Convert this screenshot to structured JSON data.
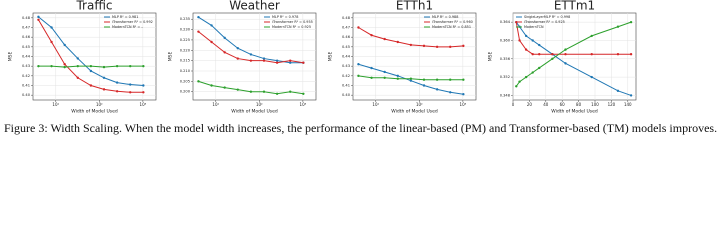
{
  "chart_data": [
    {
      "type": "line",
      "title": "Traffic",
      "x_label": "Width of Model Used",
      "y_label": "MSE",
      "xscale": "log",
      "x": [
        4,
        8,
        16,
        32,
        64,
        128,
        256,
        512,
        1024
      ],
      "xlim": [
        3,
        2000
      ],
      "xticks": [
        {
          "value": 10,
          "label": "10¹"
        },
        {
          "value": 100,
          "label": "10²"
        },
        {
          "value": 1000,
          "label": "10³"
        }
      ],
      "ylim": [
        0.395,
        0.485
      ],
      "yticks": [
        {
          "value": 0.4,
          "label": "0.40"
        },
        0.41,
        0.42,
        0.43,
        0.44,
        0.45,
        0.46,
        0.47,
        0.48
      ],
      "grid": true,
      "legend": "upper right",
      "series": [
        {
          "name": "MLP R² = 0.981",
          "color": "#1f77b4",
          "values": [
            0.481,
            0.47,
            0.452,
            0.438,
            0.425,
            0.418,
            0.413,
            0.411,
            0.41
          ]
        },
        {
          "name": "iTransformer R² = 0.992",
          "color": "#d62728",
          "values": [
            0.478,
            0.455,
            0.432,
            0.418,
            0.41,
            0.406,
            0.404,
            0.403,
            0.403
          ]
        },
        {
          "name": "ModernTCN R² = –",
          "color": "#2ca02c",
          "values": [
            0.43,
            0.43,
            0.429,
            0.43,
            0.43,
            0.429,
            0.43,
            0.43,
            0.43
          ]
        }
      ]
    },
    {
      "type": "line",
      "title": "Weather",
      "x_label": "Width of Model Used",
      "y_label": "MSE",
      "xscale": "log",
      "x": [
        4,
        8,
        16,
        32,
        64,
        128,
        256,
        512,
        1024
      ],
      "xlim": [
        3,
        2000
      ],
      "xticks": [
        {
          "value": 10,
          "label": "10¹"
        },
        {
          "value": 100,
          "label": "10²"
        },
        {
          "value": 1000,
          "label": "10³"
        }
      ],
      "ylim": [
        0.196,
        0.238
      ],
      "yticks": [
        {
          "value": 0.2,
          "label": "0.200"
        },
        0.205,
        {
          "value": 0.21,
          "label": "0.210"
        },
        0.215,
        {
          "value": 0.22,
          "label": "0.220"
        },
        0.225,
        {
          "value": 0.23,
          "label": "0.230"
        },
        0.235
      ],
      "grid": true,
      "legend": "upper right",
      "series": [
        {
          "name": "MLP R² = 0.978",
          "color": "#1f77b4",
          "values": [
            0.236,
            0.232,
            0.226,
            0.221,
            0.218,
            0.216,
            0.215,
            0.214,
            0.214
          ]
        },
        {
          "name": "iTransformer R² = 0.955",
          "color": "#d62728",
          "values": [
            0.229,
            0.224,
            0.219,
            0.216,
            0.215,
            0.215,
            0.214,
            0.215,
            0.214
          ]
        },
        {
          "name": "ModernTCN R² = 0.925",
          "color": "#2ca02c",
          "values": [
            0.205,
            0.203,
            0.202,
            0.201,
            0.2,
            0.2,
            0.199,
            0.2,
            0.199
          ]
        }
      ]
    },
    {
      "type": "line",
      "title": "ETTh1",
      "x_label": "Width of Model Used",
      "y_label": "MSE",
      "xscale": "log",
      "x": [
        4,
        8,
        16,
        32,
        64,
        128,
        256,
        512,
        1024
      ],
      "xlim": [
        3,
        2000
      ],
      "xticks": [
        {
          "value": 10,
          "label": "10¹"
        },
        {
          "value": 100,
          "label": "10²"
        },
        {
          "value": 1000,
          "label": "10³"
        }
      ],
      "ylim": [
        0.395,
        0.485
      ],
      "yticks": [
        {
          "value": 0.4,
          "label": "0.40"
        },
        0.41,
        0.42,
        0.43,
        0.44,
        0.45,
        0.46,
        0.47,
        0.48
      ],
      "grid": true,
      "legend": "upper right",
      "series": [
        {
          "name": "MLP R² = 0.988",
          "color": "#1f77b4",
          "values": [
            0.432,
            0.428,
            0.424,
            0.42,
            0.415,
            0.41,
            0.406,
            0.403,
            0.401
          ]
        },
        {
          "name": "iTransformer R² = 0.960",
          "color": "#d62728",
          "values": [
            0.47,
            0.462,
            0.458,
            0.455,
            0.452,
            0.451,
            0.45,
            0.45,
            0.451
          ]
        },
        {
          "name": "ModernTCN R² = 0.851",
          "color": "#2ca02c",
          "values": [
            0.42,
            0.418,
            0.418,
            0.417,
            0.417,
            0.416,
            0.416,
            0.416,
            0.416
          ]
        }
      ]
    },
    {
      "type": "line",
      "title": "ETTm1",
      "x_label": "Width of Model Used",
      "y_label": "MSE",
      "xscale": "linear",
      "x": [
        4,
        8,
        16,
        24,
        32,
        48,
        64,
        96,
        128,
        144
      ],
      "xlim": [
        0,
        150
      ],
      "xticks": [
        0,
        20,
        40,
        60,
        80,
        100,
        120,
        140
      ],
      "ylim": [
        0.347,
        0.366
      ],
      "yticks": [
        0.348,
        0.352,
        0.356,
        {
          "value": 0.36,
          "label": "0.360"
        },
        0.364
      ],
      "grid": true,
      "legend": "upper left",
      "series": [
        {
          "name": "SingleLayerMLP R² = 0.998",
          "color": "#1f77b4",
          "values": [
            0.364,
            0.363,
            0.361,
            0.36,
            0.359,
            0.357,
            0.355,
            0.352,
            0.349,
            0.348
          ]
        },
        {
          "name": "iTransformer R² = 0.925",
          "color": "#d62728",
          "values": [
            0.364,
            0.36,
            0.358,
            0.357,
            0.357,
            0.357,
            0.357,
            0.357,
            0.357,
            0.357
          ]
        },
        {
          "name": "ModernTCN",
          "color": "#2ca02c",
          "values": [
            0.35,
            0.351,
            0.352,
            0.353,
            0.354,
            0.356,
            0.358,
            0.361,
            0.363,
            0.364
          ]
        }
      ]
    }
  ],
  "caption": "Figure 3: Width Scaling. When the model width increases, the performance of the linear-based (PM) and Transformer-based (TM) models improves."
}
